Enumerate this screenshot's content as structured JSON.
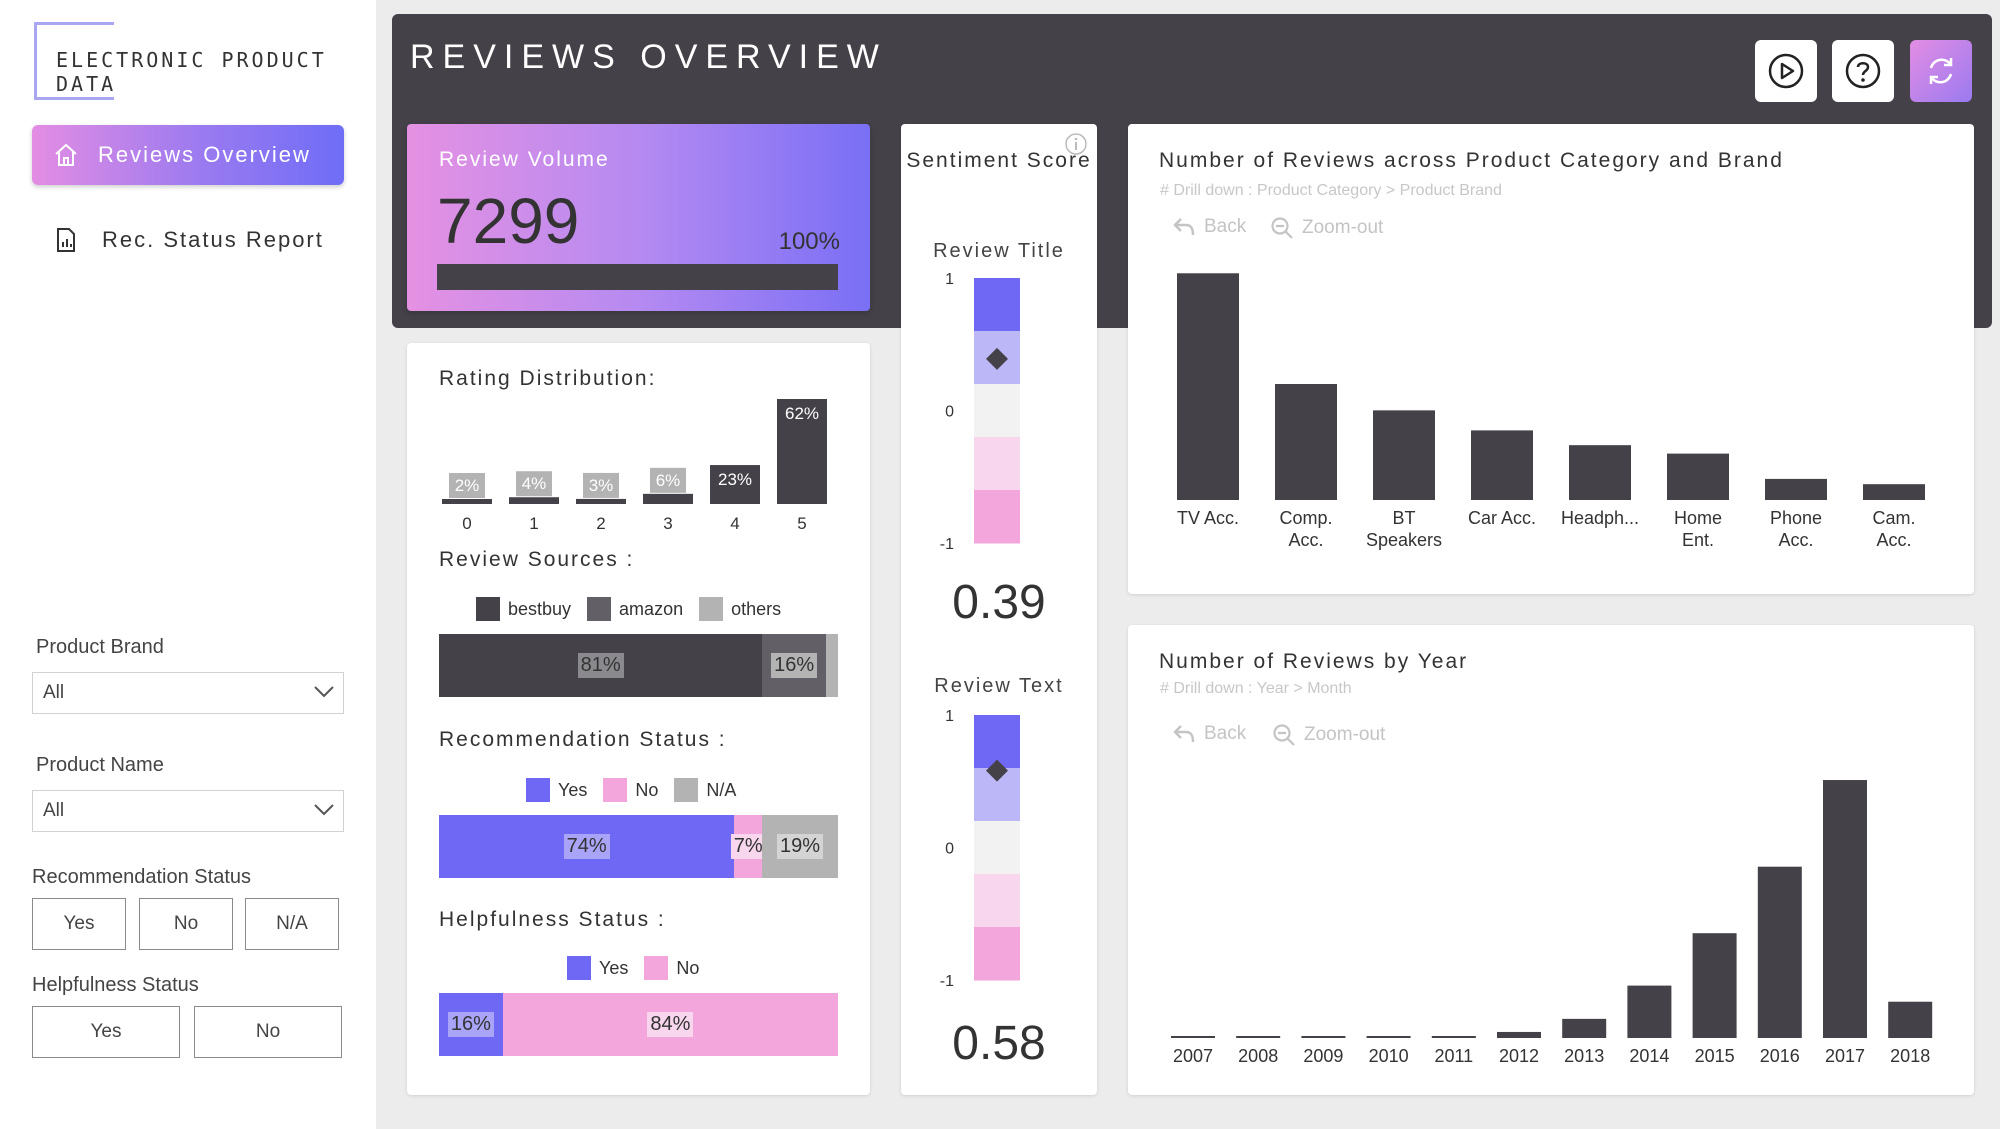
{
  "app": {
    "logo_text": "ELECTRONIC PRODUCT DATA",
    "page_title": "REVIEWS OVERVIEW"
  },
  "nav": [
    {
      "label": "Reviews Overview",
      "icon": "home-icon",
      "active": true
    },
    {
      "label": "Rec. Status Report",
      "icon": "document-icon",
      "active": false
    }
  ],
  "filters": {
    "product_brand": {
      "label": "Product Brand",
      "value": "All"
    },
    "product_name": {
      "label": "Product Name",
      "value": "All"
    },
    "recommendation": {
      "label": "Recommendation Status",
      "options": [
        "Yes",
        "No",
        "N/A"
      ]
    },
    "helpfulness": {
      "label": "Helpfulness Status",
      "options": [
        "Yes",
        "No"
      ]
    }
  },
  "header_buttons": [
    {
      "icon": "play-icon"
    },
    {
      "icon": "help-icon"
    },
    {
      "icon": "refresh-icon"
    }
  ],
  "kpi": {
    "label": "Review Volume",
    "value": "7299",
    "percent": "100%",
    "fill": 1.0
  },
  "colors": {
    "dark": "#454148",
    "gray": "#b3b3b3",
    "blue": "#6f68f5",
    "pink": "#f3a6dc",
    "lightblue": "#bcb8f7",
    "lightpink": "#f8d6ee"
  },
  "chart_data": [
    {
      "id": "rating_distribution",
      "type": "bar",
      "title": "Rating Distribution:",
      "categories": [
        "0",
        "1",
        "2",
        "3",
        "4",
        "5"
      ],
      "values": [
        2,
        4,
        3,
        6,
        23,
        62
      ],
      "value_labels": [
        "2%",
        "4%",
        "3%",
        "6%",
        "23%",
        "62%"
      ]
    },
    {
      "id": "review_sources",
      "type": "bar",
      "title": "Review Sources :",
      "series": [
        {
          "name": "bestbuy",
          "values": [
            81
          ],
          "label": "81%"
        },
        {
          "name": "amazon",
          "values": [
            16
          ],
          "label": "16%"
        },
        {
          "name": "others",
          "values": [
            3
          ],
          "label": ""
        }
      ]
    },
    {
      "id": "recommendation_status",
      "type": "bar",
      "title": "Recommendation Status :",
      "series": [
        {
          "name": "Yes",
          "values": [
            74
          ],
          "label": "74%"
        },
        {
          "name": "No",
          "values": [
            7
          ],
          "label": "7%"
        },
        {
          "name": "N/A",
          "values": [
            19
          ],
          "label": "19%"
        }
      ]
    },
    {
      "id": "helpfulness_status",
      "type": "bar",
      "title": "Helpfulness Status :",
      "series": [
        {
          "name": "Yes",
          "values": [
            16
          ],
          "label": "16%"
        },
        {
          "name": "No",
          "values": [
            84
          ],
          "label": "84%"
        }
      ]
    },
    {
      "id": "sentiment_score",
      "type": "heatmap",
      "title": "Sentiment Score",
      "ylim": [
        -1,
        1
      ],
      "ticks": [
        "1",
        "0",
        "-1"
      ],
      "gauges": [
        {
          "label": "Review Title",
          "value": 0.39,
          "display": "0.39"
        },
        {
          "label": "Review Text",
          "value": 0.58,
          "display": "0.58"
        }
      ]
    },
    {
      "id": "reviews_by_category",
      "type": "bar",
      "title": "Number of Reviews across Product Category and Brand",
      "drill_note": "# Drill down : Product Category > Product Brand",
      "back": "Back",
      "zoom_out": "Zoom-out",
      "categories": [
        "TV Acc.",
        "Comp. Acc.",
        "BT Speakers",
        "Car Acc.",
        "Headph...",
        "Home Ent.",
        "Phone Acc.",
        "Cam. Acc."
      ],
      "category_lines": [
        [
          "TV Acc."
        ],
        [
          "Comp.",
          "Acc."
        ],
        [
          "BT",
          "Speakers"
        ],
        [
          "Car Acc."
        ],
        [
          "Headph..."
        ],
        [
          "Home",
          "Ent."
        ],
        [
          "Phone",
          "Acc."
        ],
        [
          "Cam.",
          "Acc."
        ]
      ],
      "values": [
        2150,
        1100,
        850,
        660,
        520,
        440,
        200,
        150
      ],
      "ylim": [
        0,
        2200
      ]
    },
    {
      "id": "reviews_by_year",
      "type": "bar",
      "title": "Number of Reviews by Year",
      "drill_note": "# Drill down : Year > Month",
      "back": "Back",
      "zoom_out": "Zoom-out",
      "categories": [
        "2007",
        "2008",
        "2009",
        "2010",
        "2011",
        "2012",
        "2013",
        "2014",
        "2015",
        "2016",
        "2017",
        "2018"
      ],
      "values": [
        5,
        5,
        6,
        6,
        8,
        30,
        95,
        260,
        520,
        850,
        1280,
        180
      ],
      "ylim": [
        0,
        1300
      ]
    }
  ]
}
